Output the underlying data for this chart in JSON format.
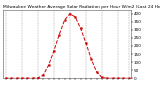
{
  "title": "Milwaukee Weather Average Solar Radiation per Hour W/m2 (Last 24 Hours)",
  "hours": [
    0,
    1,
    2,
    3,
    4,
    5,
    6,
    7,
    8,
    9,
    10,
    11,
    12,
    13,
    14,
    15,
    16,
    17,
    18,
    19,
    20,
    21,
    22,
    23
  ],
  "values": [
    0,
    0,
    0,
    0,
    0,
    0,
    2,
    20,
    80,
    170,
    270,
    360,
    400,
    380,
    310,
    220,
    120,
    40,
    5,
    0,
    0,
    0,
    0,
    0
  ],
  "line_color": "#cc0000",
  "grid_color": "#999999",
  "bg_color": "#ffffff",
  "plot_bg": "#ffffff",
  "ylim": [
    0,
    420
  ],
  "ytick_values": [
    0,
    50,
    100,
    150,
    200,
    250,
    300,
    350,
    400
  ],
  "ytick_labels": [
    "0",
    "50",
    "100",
    "150",
    "200",
    "250",
    "300",
    "350",
    "400"
  ],
  "ylabel_fontsize": 3.0,
  "xlabel_fontsize": 3.0,
  "title_fontsize": 3.2,
  "line_width": 0.7,
  "marker_size": 1.2,
  "grid_major_positions": [
    0,
    3,
    6,
    9,
    12,
    15,
    18,
    21,
    23
  ]
}
